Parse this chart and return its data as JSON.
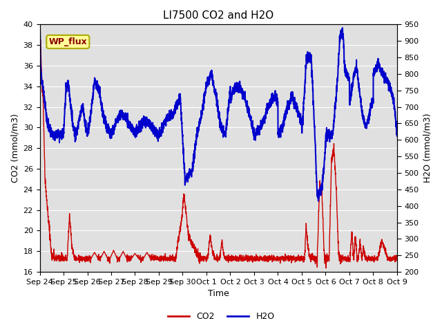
{
  "title": "LI7500 CO2 and H2O",
  "xlabel": "Time",
  "ylabel_left": "CO2 (mmol/m3)",
  "ylabel_right": "H2O (mmol/m3)",
  "co2_ylim": [
    16,
    40
  ],
  "h2o_ylim": [
    200,
    950
  ],
  "co2_color": "#cc0000",
  "h2o_color": "#0000cc",
  "background_color": "#e0e0e0",
  "annotation_text": "WP_flux",
  "annotation_bg": "#ffff99",
  "annotation_border": "#aaaa00",
  "title_fontsize": 11,
  "axis_fontsize": 9,
  "tick_fontsize": 8,
  "legend_fontsize": 9,
  "co2_linewidth": 1.0,
  "h2o_linewidth": 1.5,
  "x_tick_labels": [
    "Sep 24",
    "Sep 25",
    "Sep 26",
    "Sep 27",
    "Sep 28",
    "Sep 29",
    "Sep 30",
    "Oct 1",
    "Oct 2",
    "Oct 3",
    "Oct 4",
    "Oct 5",
    "Oct 6",
    "Oct 7",
    "Oct 8",
    "Oct 9"
  ],
  "x_tick_positions": [
    0,
    1,
    2,
    3,
    4,
    5,
    6,
    7,
    8,
    9,
    10,
    11,
    12,
    13,
    14,
    15
  ]
}
